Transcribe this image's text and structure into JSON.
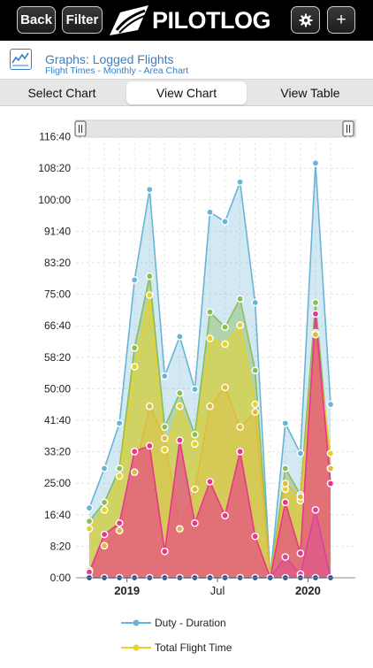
{
  "topbar": {
    "back_label": "Back",
    "filter_label": "Filter",
    "logo_text": "PILOTLOG",
    "settings_icon": "gear-icon",
    "add_label": "+"
  },
  "header": {
    "icon": "line-chart-icon",
    "title": "Graphs: Logged Flights",
    "subtitle": "Flight Times - Monthly - Area Chart"
  },
  "tabs": [
    {
      "label": "Select Chart",
      "active": false
    },
    {
      "label": "View Chart",
      "active": true
    },
    {
      "label": "View Table",
      "active": false
    }
  ],
  "colors": {
    "duty": "#6ab4d6",
    "total": "#e8d12a",
    "green": "#8bbd56",
    "pink": "#e8358e",
    "navy": "#2c4a8a"
  },
  "chart_data": {
    "type": "area",
    "y_tick_labels": [
      "0:00",
      "8:20",
      "16:40",
      "25:00",
      "33:20",
      "41:40",
      "50:00",
      "58:20",
      "66:40",
      "75:00",
      "83:20",
      "91:40",
      "100:00",
      "108:20",
      "116:40"
    ],
    "x_tick_labels": [
      "2019",
      "Jul",
      "2020"
    ],
    "ylim": [
      0,
      116.67
    ],
    "grid": true,
    "legend_position": "bottom",
    "series": [
      {
        "name": "Duty - Duration",
        "color": "#6ab4d6",
        "values": [
          18.5,
          29,
          41,
          79,
          103,
          53.5,
          64,
          50,
          97,
          94.5,
          105,
          73,
          0,
          41,
          33,
          110,
          46
        ]
      },
      {
        "color": "#8bbd56",
        "values": [
          15,
          20,
          29,
          61,
          80,
          40,
          49,
          38,
          70.5,
          66.5,
          74,
          55,
          0,
          29,
          22,
          73,
          29
        ]
      },
      {
        "name": "Total Flight Time",
        "color": "#e8d12a",
        "values": [
          13,
          18,
          27,
          56,
          75,
          34,
          45.5,
          35.5,
          63.5,
          62,
          67,
          46,
          0,
          23.5,
          20.5,
          65,
          33
        ]
      },
      {
        "color": "#e1b93d",
        "values": [
          2,
          8.5,
          12.5,
          28,
          45.5,
          37,
          13,
          23.5,
          45.5,
          50.5,
          40,
          44,
          0,
          25,
          21.5,
          64.5,
          29
        ]
      },
      {
        "color": "#e8358e",
        "values": [
          1.5,
          11.5,
          14.5,
          33.5,
          35,
          7,
          36.5,
          14.5,
          25.5,
          16.5,
          33.5,
          11,
          0,
          20,
          6.5,
          70,
          25
        ]
      },
      {
        "color": "#d9449b",
        "values": [
          0,
          0,
          0,
          0,
          0,
          0,
          0,
          0,
          0,
          0,
          0,
          0,
          0,
          5.5,
          1,
          18,
          0
        ]
      },
      {
        "color": "#2c4a8a",
        "values": [
          0,
          0,
          0,
          0,
          0,
          0,
          0,
          0,
          0,
          0,
          0,
          0,
          0,
          0,
          0,
          0,
          0
        ]
      }
    ],
    "x_tick_index": [
      2.5,
      8.5,
      14.5
    ]
  },
  "legend": [
    {
      "label": "Duty - Duration",
      "color": "#6ab4d6"
    },
    {
      "label": "Total Flight Time",
      "color": "#e8d12a"
    }
  ]
}
